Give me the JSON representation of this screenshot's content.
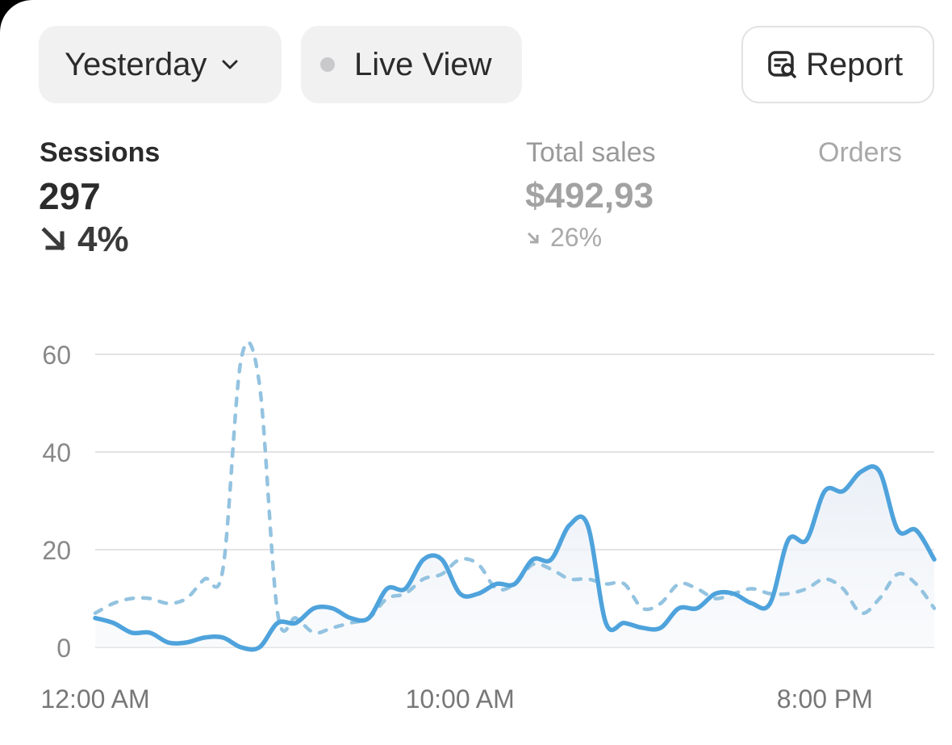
{
  "controls": {
    "date_range": "Yesterday",
    "live_view": "Live View",
    "report": "Report"
  },
  "metrics": {
    "sessions": {
      "label": "Sessions",
      "value": "297",
      "change": "4%",
      "direction": "down"
    },
    "total_sales": {
      "label": "Total sales",
      "value": "$492,93",
      "change": "26%",
      "direction": "down"
    },
    "orders": {
      "label": "Orders"
    }
  },
  "colors": {
    "accent": "#4fa3dc",
    "comparison": "#93c3e0",
    "grid": "#e3e3e5",
    "text_primary": "#2b2b2b",
    "text_muted": "#8a8a8a"
  },
  "chart_data": {
    "type": "line",
    "x_ticks": [
      "12:00 AM",
      "10:00 AM",
      "8:00 PM"
    ],
    "y_ticks": [
      0,
      20,
      40,
      60
    ],
    "ylim": [
      0,
      60
    ],
    "grid": true,
    "x_unit": "hour",
    "series": [
      {
        "style": "solid",
        "x": [
          0,
          0.5,
          1,
          1.5,
          2,
          2.5,
          3,
          3.5,
          4,
          4.5,
          5,
          5.5,
          6,
          6.5,
          7,
          7.5,
          8,
          8.5,
          9,
          9.5,
          10,
          10.5,
          11,
          11.5,
          12,
          12.5,
          13,
          13.5,
          14,
          14.5,
          15,
          15.5,
          16,
          16.5,
          17,
          17.5,
          18,
          18.5,
          19,
          19.5,
          20,
          20.5,
          21,
          21.5,
          22,
          22.5,
          23
        ],
        "y": [
          6,
          5,
          3,
          3,
          1,
          1,
          2,
          2,
          0,
          0,
          5,
          5,
          8,
          8,
          6,
          6,
          12,
          12,
          18,
          18,
          11,
          11,
          13,
          13,
          18,
          18,
          25,
          25,
          5,
          5,
          4,
          4,
          8,
          8,
          11,
          11,
          9,
          9,
          22,
          22,
          32,
          32,
          36,
          36,
          24,
          24,
          18
        ]
      },
      {
        "style": "dashed",
        "x": [
          0,
          0.5,
          1,
          1.5,
          2,
          2.5,
          3,
          3.5,
          4,
          4.5,
          5,
          5.5,
          6,
          6.5,
          7,
          7.5,
          8,
          8.5,
          9,
          9.5,
          10,
          10.5,
          11,
          11.5,
          12,
          12.5,
          13,
          13.5,
          14,
          14.5,
          15,
          15.5,
          16,
          16.5,
          17,
          17.5,
          18,
          18.5,
          19,
          19.5,
          20,
          20.5,
          21,
          21.5,
          22,
          22.5,
          23
        ],
        "y": [
          7,
          9,
          10,
          10,
          9,
          10,
          14,
          16,
          59,
          54,
          7,
          6,
          3,
          4,
          5,
          6,
          10,
          11,
          14,
          15,
          18,
          17,
          12,
          13,
          17,
          16,
          14,
          14,
          13,
          13,
          8,
          9,
          13,
          12,
          10,
          11,
          12,
          11,
          11,
          12,
          14,
          12,
          7,
          10,
          15,
          13,
          8
        ]
      }
    ]
  }
}
